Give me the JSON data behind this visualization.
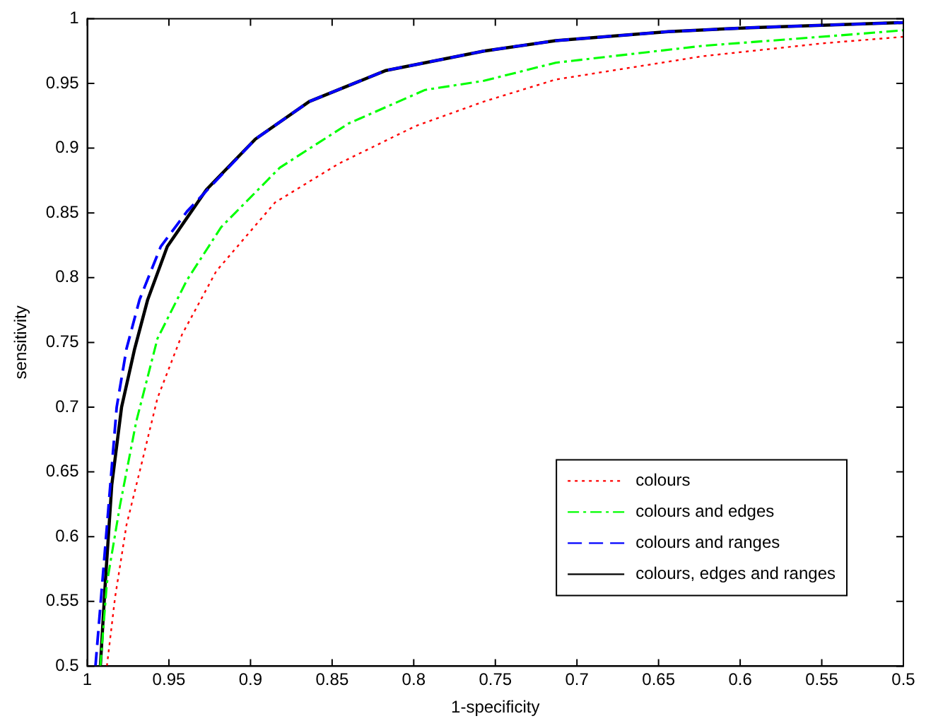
{
  "chart_data": {
    "type": "line",
    "xlabel": "1-specificity",
    "ylabel": "sensitivity",
    "xlim": [
      1,
      0.5
    ],
    "ylim": [
      0.5,
      1
    ],
    "xticks": [
      1,
      0.95,
      0.9,
      0.85,
      0.8,
      0.75,
      0.7,
      0.65,
      0.6,
      0.55,
      0.5
    ],
    "yticks": [
      0.5,
      0.55,
      0.6,
      0.65,
      0.7,
      0.75,
      0.8,
      0.85,
      0.9,
      0.95,
      1
    ],
    "grid": false,
    "legend": "bottom right",
    "marker": "none",
    "series": [
      {
        "name": "colours",
        "color": "#ff0000",
        "line_style": "dotted",
        "x": [
          0.988,
          0.983,
          0.976,
          0.967,
          0.957,
          0.942,
          0.921,
          0.885,
          0.846,
          0.799,
          0.757,
          0.713,
          0.623,
          0.549,
          0.5
        ],
        "values": [
          0.5,
          0.553,
          0.609,
          0.655,
          0.707,
          0.756,
          0.805,
          0.858,
          0.888,
          0.917,
          0.936,
          0.953,
          0.971,
          0.981,
          0.986
        ]
      },
      {
        "name": "colours and edges",
        "color": "#00ff00",
        "line_style": "dashdot",
        "x": [
          0.992,
          0.988,
          0.98,
          0.97,
          0.957,
          0.939,
          0.918,
          0.882,
          0.84,
          0.793,
          0.757,
          0.713,
          0.623,
          0.54,
          0.5
        ],
        "values": [
          0.5,
          0.564,
          0.624,
          0.689,
          0.753,
          0.798,
          0.839,
          0.885,
          0.919,
          0.945,
          0.952,
          0.966,
          0.979,
          0.987,
          0.991
        ]
      },
      {
        "name": "colours and ranges",
        "color": "#0000ff",
        "line_style": "dashed",
        "x": [
          0.995,
          0.982,
          0.976,
          0.968,
          0.955,
          0.939,
          0.897,
          0.864,
          0.817,
          0.757,
          0.713,
          0.644,
          0.594,
          0.5
        ],
        "values": [
          0.5,
          0.7,
          0.745,
          0.783,
          0.824,
          0.851,
          0.907,
          0.936,
          0.96,
          0.975,
          0.983,
          0.99,
          0.993,
          0.997
        ]
      },
      {
        "name": "colours, edges and ranges",
        "color": "#000000",
        "line_style": "solid",
        "x": [
          0.992,
          0.989,
          0.985,
          0.979,
          0.971,
          0.963,
          0.951,
          0.927,
          0.897,
          0.864,
          0.817,
          0.757,
          0.713,
          0.644,
          0.594,
          0.5
        ],
        "values": [
          0.5,
          0.564,
          0.64,
          0.7,
          0.745,
          0.783,
          0.824,
          0.868,
          0.907,
          0.936,
          0.96,
          0.975,
          0.983,
          0.99,
          0.993,
          0.997
        ]
      }
    ]
  }
}
